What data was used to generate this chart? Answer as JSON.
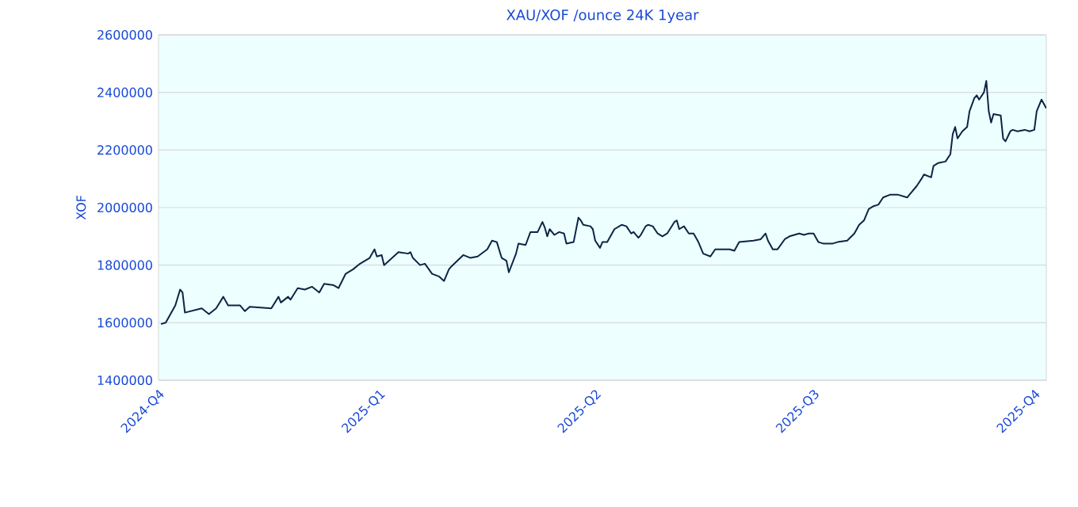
{
  "chart_data": {
    "type": "line",
    "title": "XAU/XOF /ounce 24K 1year",
    "ylabel": "XOF",
    "x": [
      "2024-10-02",
      "2024-10-04",
      "2024-10-08",
      "2024-10-10",
      "2024-10-11",
      "2024-10-12",
      "2024-10-19",
      "2024-10-22",
      "2024-10-25",
      "2024-10-28",
      "2024-10-30",
      "2024-11-04",
      "2024-11-06",
      "2024-11-08",
      "2024-11-17",
      "2024-11-20",
      "2024-11-21",
      "2024-11-24",
      "2024-11-25",
      "2024-11-28",
      "2024-12-01",
      "2024-12-04",
      "2024-12-07",
      "2024-12-09",
      "2024-12-13",
      "2024-12-15",
      "2024-12-18",
      "2024-12-21",
      "2024-12-24",
      "2024-12-28",
      "2024-12-30",
      "2024-12-31",
      "2025-01-02",
      "2025-01-03",
      "2025-01-09",
      "2025-01-13",
      "2025-01-14",
      "2025-01-15",
      "2025-01-18",
      "2025-01-20",
      "2025-01-23",
      "2025-01-26",
      "2025-01-28",
      "2025-01-30",
      "2025-01-31",
      "2025-02-05",
      "2025-02-08",
      "2025-02-11",
      "2025-02-15",
      "2025-02-17",
      "2025-02-19",
      "2025-02-21",
      "2025-02-23",
      "2025-02-24",
      "2025-02-27",
      "2025-02-28",
      "2025-03-03",
      "2025-03-05",
      "2025-03-08",
      "2025-03-10",
      "2025-03-11",
      "2025-03-12",
      "2025-03-13",
      "2025-03-15",
      "2025-03-17",
      "2025-03-19",
      "2025-03-20",
      "2025-03-23",
      "2025-03-25",
      "2025-03-26",
      "2025-03-27",
      "2025-03-30",
      "2025-03-31",
      "2025-04-01",
      "2025-04-03",
      "2025-04-04",
      "2025-04-06",
      "2025-04-09",
      "2025-04-12",
      "2025-04-14",
      "2025-04-16",
      "2025-04-17",
      "2025-04-19",
      "2025-04-20",
      "2025-04-22",
      "2025-04-23",
      "2025-04-25",
      "2025-04-27",
      "2025-04-29",
      "2025-05-01",
      "2025-05-04",
      "2025-05-05",
      "2025-05-06",
      "2025-05-08",
      "2025-05-10",
      "2025-05-12",
      "2025-05-14",
      "2025-05-16",
      "2025-05-19",
      "2025-05-21",
      "2025-05-27",
      "2025-05-29",
      "2025-05-31",
      "2025-06-06",
      "2025-06-09",
      "2025-06-11",
      "2025-06-12",
      "2025-06-14",
      "2025-06-16",
      "2025-06-19",
      "2025-06-21",
      "2025-06-25",
      "2025-06-27",
      "2025-06-29",
      "2025-07-01",
      "2025-07-03",
      "2025-07-05",
      "2025-07-09",
      "2025-07-11",
      "2025-07-15",
      "2025-07-18",
      "2025-07-20",
      "2025-07-22",
      "2025-07-24",
      "2025-07-26",
      "2025-07-28",
      "2025-07-30",
      "2025-08-02",
      "2025-08-05",
      "2025-08-09",
      "2025-08-10",
      "2025-08-13",
      "2025-08-15",
      "2025-08-16",
      "2025-08-19",
      "2025-08-20",
      "2025-08-22",
      "2025-08-25",
      "2025-08-27",
      "2025-08-28",
      "2025-08-29",
      "2025-08-30",
      "2025-09-01",
      "2025-09-03",
      "2025-09-04",
      "2025-09-06",
      "2025-09-07",
      "2025-09-08",
      "2025-09-10",
      "2025-09-11",
      "2025-09-12",
      "2025-09-13",
      "2025-09-14",
      "2025-09-17",
      "2025-09-18",
      "2025-09-19",
      "2025-09-21",
      "2025-09-22",
      "2025-09-24",
      "2025-09-27",
      "2025-09-29",
      "2025-10-01",
      "2025-10-02",
      "2025-10-04",
      "2025-10-06"
    ],
    "series": [
      {
        "color": "#0b2545",
        "values": [
          1595000,
          1600000,
          1660000,
          1715000,
          1705000,
          1635000,
          1650000,
          1630000,
          1650000,
          1690000,
          1660000,
          1660000,
          1640000,
          1655000,
          1650000,
          1690000,
          1670000,
          1690000,
          1680000,
          1720000,
          1715000,
          1725000,
          1705000,
          1735000,
          1730000,
          1720000,
          1770000,
          1785000,
          1805000,
          1825000,
          1855000,
          1830000,
          1835000,
          1800000,
          1845000,
          1840000,
          1845000,
          1825000,
          1800000,
          1805000,
          1770000,
          1760000,
          1745000,
          1785000,
          1795000,
          1835000,
          1825000,
          1830000,
          1855000,
          1885000,
          1880000,
          1825000,
          1815000,
          1775000,
          1840000,
          1875000,
          1870000,
          1915000,
          1915000,
          1950000,
          1930000,
          1900000,
          1925000,
          1905000,
          1915000,
          1910000,
          1875000,
          1880000,
          1965000,
          1955000,
          1940000,
          1935000,
          1925000,
          1885000,
          1860000,
          1880000,
          1880000,
          1925000,
          1940000,
          1935000,
          1910000,
          1915000,
          1895000,
          1905000,
          1935000,
          1940000,
          1935000,
          1910000,
          1900000,
          1910000,
          1950000,
          1955000,
          1925000,
          1935000,
          1910000,
          1910000,
          1880000,
          1840000,
          1830000,
          1855000,
          1855000,
          1850000,
          1880000,
          1885000,
          1890000,
          1910000,
          1885000,
          1855000,
          1855000,
          1890000,
          1900000,
          1910000,
          1905000,
          1910000,
          1910000,
          1880000,
          1875000,
          1875000,
          1880000,
          1885000,
          1910000,
          1940000,
          1955000,
          1995000,
          2005000,
          2010000,
          2035000,
          2045000,
          2045000,
          2035000,
          2045000,
          2075000,
          2100000,
          2115000,
          2105000,
          2145000,
          2155000,
          2160000,
          2185000,
          2255000,
          2280000,
          2240000,
          2265000,
          2280000,
          2335000,
          2380000,
          2390000,
          2375000,
          2400000,
          2440000,
          2335000,
          2295000,
          2325000,
          2320000,
          2240000,
          2230000,
          2265000,
          2270000,
          2265000,
          2270000,
          2265000,
          2270000,
          2335000,
          2375000,
          2345000
        ]
      }
    ],
    "xlim": [
      "2024-10-01",
      "2025-10-06"
    ],
    "xticks": [
      {
        "value": "2024-10-01",
        "label": "2024-Q4"
      },
      {
        "value": "2025-01-01",
        "label": "2025-Q1"
      },
      {
        "value": "2025-04-01",
        "label": "2025-Q2"
      },
      {
        "value": "2025-07-01",
        "label": "2025-Q3"
      },
      {
        "value": "2025-10-01",
        "label": "2025-Q4"
      }
    ],
    "ylim": [
      1400000,
      2600000
    ],
    "yticks": [
      1400000,
      1600000,
      1800000,
      2000000,
      2200000,
      2400000,
      2600000
    ],
    "grid": "y",
    "marker": "none",
    "line_style": "solid"
  }
}
